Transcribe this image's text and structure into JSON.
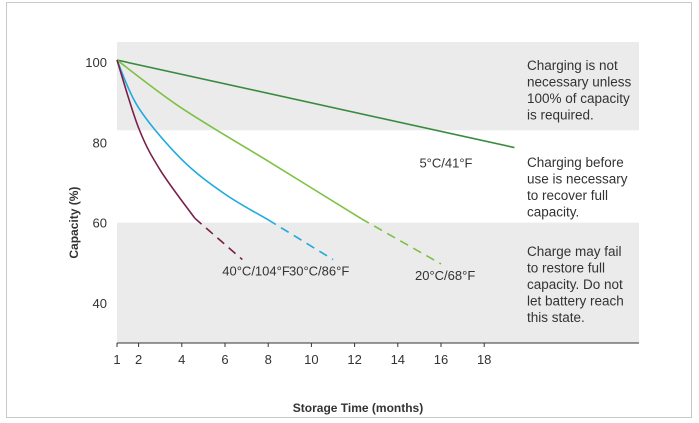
{
  "chart_data": {
    "type": "line",
    "xlabel": "Storage Time (months)",
    "ylabel": "Capacity (%)",
    "xlim": [
      1,
      20
    ],
    "ylim": [
      30,
      105
    ],
    "x_ticks": [
      1,
      2,
      4,
      6,
      8,
      10,
      12,
      14,
      16,
      18
    ],
    "y_ticks": [
      40,
      60,
      80,
      100
    ],
    "x_tick_labels": [
      "1",
      "2",
      "4",
      "6",
      "8",
      "10",
      "12",
      "14",
      "16",
      "18"
    ],
    "y_tick_labels": [
      "40",
      "60",
      "80",
      "100"
    ],
    "zones": [
      {
        "y_range": [
          83,
          105
        ],
        "shaded": true,
        "lines": [
          "Charging is not",
          "necessary unless",
          "100% of capacity",
          "is required."
        ]
      },
      {
        "y_range": [
          60,
          83
        ],
        "shaded": false,
        "lines": [
          "Charging before",
          "use is necessary",
          "to recover full",
          "capacity."
        ]
      },
      {
        "y_range": [
          30,
          60
        ],
        "shaded": true,
        "lines": [
          "Charge may fail",
          "to restore full",
          "capacity. Do not",
          "let battery reach",
          "this state."
        ]
      }
    ],
    "series": [
      {
        "name": "5°C/41°F",
        "color": "#3a8a3e",
        "x": [
          1,
          19.4
        ],
        "y": [
          100.5,
          78.7
        ],
        "dashed_from_x": null
      },
      {
        "name": "20°C/68°F",
        "color": "#7dc142",
        "x": [
          1,
          4,
          8,
          12.3,
          16
        ],
        "y": [
          100.5,
          88.5,
          75.3,
          61,
          49.7
        ],
        "dashed_from_x": 12.3
      },
      {
        "name": "30°C/86°F",
        "color": "#1fa9df",
        "x": [
          1,
          2,
          4,
          6,
          8,
          11
        ],
        "y": [
          100.5,
          88.6,
          75.7,
          67.1,
          60.7,
          50.8
        ],
        "dashed_from_x": 8
      },
      {
        "name": "40°C/104°F",
        "color": "#7a1f4a",
        "x": [
          1,
          2,
          3,
          4.6,
          6.8
        ],
        "y": [
          100.5,
          83.6,
          73.1,
          61.1,
          50.8
        ],
        "dashed_from_x": 4.6
      }
    ]
  }
}
